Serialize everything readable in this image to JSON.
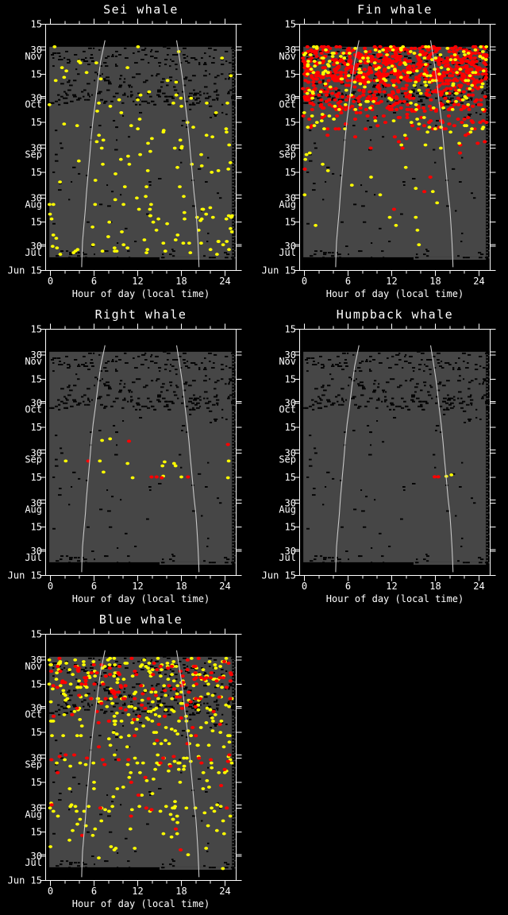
{
  "meta": {
    "background": "#000000"
  },
  "colors": {
    "frame": "#FFFFFF",
    "text": "#FFFFFF",
    "effort_fill": "#464646",
    "speckle": "#000000",
    "sun_line": "#C8C8C8",
    "yellow": "#FFFF00",
    "red": "#FF0000"
  },
  "axis": {
    "x_title": "Hour of day (local time)",
    "x_range": [
      0,
      24
    ],
    "x_major_ticks": [
      {
        "h": 0,
        "label": "0"
      },
      {
        "h": 6,
        "label": "6"
      },
      {
        "h": 12,
        "label": "12"
      },
      {
        "h": 18,
        "label": "18"
      },
      {
        "h": 24,
        "label": "24"
      }
    ],
    "x_minor_hours": [
      2,
      4,
      8,
      10,
      14,
      16,
      20,
      22
    ],
    "y_axis_start": "Jun 15",
    "y_axis_end": "Nov 15",
    "y_ticks": [
      {
        "d": 153,
        "label": "15"
      },
      {
        "d": 139,
        "label": ""
      },
      {
        "d": 137,
        "label": "30",
        "month": "Nov"
      },
      {
        "d": 122,
        "label": "15"
      },
      {
        "d": 108,
        "label": ""
      },
      {
        "d": 107,
        "label": "30",
        "month": "Oct"
      },
      {
        "d": 92,
        "label": "15"
      },
      {
        "d": 78,
        "label": ""
      },
      {
        "d": 76,
        "label": "30",
        "month": "Sep"
      },
      {
        "d": 61,
        "label": "15"
      },
      {
        "d": 47,
        "label": ""
      },
      {
        "d": 45,
        "label": "30",
        "month": "Aug"
      },
      {
        "d": 30,
        "label": "15"
      },
      {
        "d": 16,
        "label": ""
      },
      {
        "d": 15,
        "label": "30",
        "month": "Jul"
      },
      {
        "d": 0,
        "label": "Jun 15"
      }
    ]
  },
  "effort": {
    "d0": 8.2,
    "d1": 139,
    "h0": -0.15,
    "h1": 24.95,
    "notch_h": 15,
    "notch_depth": 3.2,
    "speckle_bands": [
      [
        127,
        138,
        95
      ],
      [
        114,
        122,
        60
      ],
      [
        103,
        112,
        125
      ],
      [
        9,
        139,
        85
      ],
      [
        8,
        12,
        30
      ]
    ]
  },
  "sun_curves": {
    "sunrise": [
      [
        143,
        7.5
      ],
      [
        130,
        6.9
      ],
      [
        118,
        6.55
      ],
      [
        105,
        6.2
      ],
      [
        94,
        5.87
      ],
      [
        83,
        5.62
      ],
      [
        72,
        5.42
      ],
      [
        60,
        5.18
      ],
      [
        48,
        4.95
      ],
      [
        38,
        4.8
      ],
      [
        28,
        4.6
      ],
      [
        18,
        4.42
      ],
      [
        8,
        4.33
      ],
      [
        2,
        4.3
      ]
    ],
    "sunset": [
      [
        143,
        17.35
      ],
      [
        130,
        17.8
      ],
      [
        118,
        18.2
      ],
      [
        105,
        18.5
      ],
      [
        94,
        18.8
      ],
      [
        83,
        19.05
      ],
      [
        72,
        19.25
      ],
      [
        60,
        19.5
      ],
      [
        48,
        19.75
      ],
      [
        38,
        20.0
      ],
      [
        28,
        20.15
      ],
      [
        18,
        20.28
      ],
      [
        8,
        20.38
      ],
      [
        2,
        20.42
      ]
    ]
  },
  "chart_data": [
    {
      "type": "scatter",
      "title": "Sei whale",
      "xlabel": "Hour of day (local time)",
      "x_range": [
        0,
        24
      ],
      "date_range": [
        "Jun 15",
        "Nov 15"
      ],
      "series": [
        {
          "name": "sei-detections",
          "color": "yellow",
          "bands": [
            [
              10,
              22,
              34
            ],
            [
              22,
              38,
              30
            ],
            [
              38,
              55,
              14
            ],
            [
              55,
              75,
              18
            ],
            [
              75,
              90,
              20
            ],
            [
              90,
              105,
              14
            ],
            [
              105,
              120,
              12
            ],
            [
              120,
              132,
              8
            ],
            [
              132,
              139,
              4
            ]
          ],
          "points": []
        }
      ]
    },
    {
      "type": "scatter",
      "title": "Fin whale",
      "xlabel": "Hour of day (local time)",
      "x_range": [
        0,
        24
      ],
      "date_range": [
        "Jun 15",
        "Nov 15"
      ],
      "series": [
        {
          "name": "fin-red",
          "color": "red",
          "bands": [
            [
              118,
              139,
              560
            ],
            [
              100,
              118,
              240
            ],
            [
              88,
              100,
              65
            ],
            [
              78,
              88,
              10
            ],
            [
              62,
              78,
              4
            ],
            [
              40,
              62,
              2
            ],
            [
              15,
              40,
              1
            ]
          ],
          "points": []
        },
        {
          "name": "fin-yellow",
          "color": "yellow",
          "bands": [
            [
              118,
              139,
              110
            ],
            [
              100,
              118,
              60
            ],
            [
              88,
              100,
              25
            ],
            [
              78,
              88,
              8
            ],
            [
              62,
              78,
              8
            ],
            [
              40,
              62,
              7
            ],
            [
              15,
              40,
              6
            ]
          ],
          "points": []
        }
      ]
    },
    {
      "type": "scatter",
      "title": "Right whale",
      "xlabel": "Hour of day (local time)",
      "x_range": [
        0,
        24
      ],
      "date_range": [
        "Jun 15",
        "Nov 15"
      ],
      "series": [
        {
          "name": "right-yellow",
          "color": "yellow",
          "bands": [],
          "points": [
            [
              83.9,
              7.1
            ],
            [
              84.9,
              8.2
            ],
            [
              71.1,
              2.1
            ],
            [
              71.1,
              6.8
            ],
            [
              69.6,
              10.6
            ],
            [
              70.6,
              15.7
            ],
            [
              69.6,
              17.0
            ],
            [
              68.1,
              17.2
            ],
            [
              68.1,
              15.4
            ],
            [
              71.1,
              24.5
            ],
            [
              64.2,
              7.3
            ],
            [
              60.7,
              11.3
            ],
            [
              61.2,
              18.0
            ],
            [
              60.7,
              24.4
            ],
            [
              61.7,
              15.5
            ]
          ]
        },
        {
          "name": "right-red",
          "color": "red",
          "bands": [],
          "points": [
            [
              83.4,
              10.8
            ],
            [
              81.4,
              24.4
            ],
            [
              71.1,
              5.2
            ],
            [
              61.2,
              13.9
            ],
            [
              61.2,
              14.6
            ],
            [
              60.7,
              15.3
            ],
            [
              61.2,
              18.9
            ]
          ]
        }
      ]
    },
    {
      "type": "scatter",
      "title": "Humpback whale",
      "xlabel": "Hour of day (local time)",
      "x_range": [
        0,
        24
      ],
      "date_range": [
        "Jun 15",
        "Nov 15"
      ],
      "series": [
        {
          "name": "humpback-red",
          "color": "red",
          "bands": [],
          "points": [
            [
              61.3,
              17.9
            ],
            [
              61.3,
              18.4
            ]
          ]
        },
        {
          "name": "humpback-yellow",
          "color": "yellow",
          "bands": [],
          "points": [
            [
              61.6,
              19.5
            ],
            [
              62.5,
              20.2
            ]
          ]
        }
      ]
    },
    {
      "type": "scatter",
      "title": "Blue whale",
      "xlabel": "Hour of day (local time)",
      "x_range": [
        0,
        24
      ],
      "date_range": [
        "Jun 15",
        "Nov 15"
      ],
      "series": [
        {
          "name": "blue-yellow",
          "color": "yellow",
          "bands": [
            [
              133,
              138,
              40
            ],
            [
              127,
              133,
              30
            ],
            [
              121,
              127,
              32
            ],
            [
              113,
              121,
              34
            ],
            [
              106,
              113,
              30
            ],
            [
              99,
              106,
              28
            ],
            [
              90,
              99,
              28
            ],
            [
              83,
              90,
              18
            ],
            [
              73,
              78,
              20
            ],
            [
              67,
              73,
              18
            ],
            [
              57,
              67,
              12
            ],
            [
              47,
              57,
              8
            ],
            [
              43,
              46,
              22
            ],
            [
              32,
              43,
              16
            ],
            [
              22,
              32,
              10
            ],
            [
              12,
              22,
              8
            ]
          ],
          "points": [
            [
              7.4,
              23.7
            ]
          ]
        },
        {
          "name": "blue-red",
          "color": "red",
          "bands": [
            [
              133,
              138,
              12
            ],
            [
              127,
              133,
              28
            ],
            [
              121,
              127,
              26
            ],
            [
              113,
              121,
              28
            ],
            [
              106,
              113,
              15
            ],
            [
              99,
              106,
              8
            ],
            [
              90,
              99,
              6
            ],
            [
              83,
              90,
              4
            ],
            [
              73,
              78,
              16
            ],
            [
              67,
              73,
              4
            ],
            [
              57,
              67,
              3
            ],
            [
              47,
              57,
              2
            ],
            [
              43,
              46,
              4
            ],
            [
              32,
              43,
              2
            ],
            [
              22,
              32,
              1
            ],
            [
              12,
              22,
              1
            ]
          ],
          "points": []
        }
      ]
    }
  ]
}
